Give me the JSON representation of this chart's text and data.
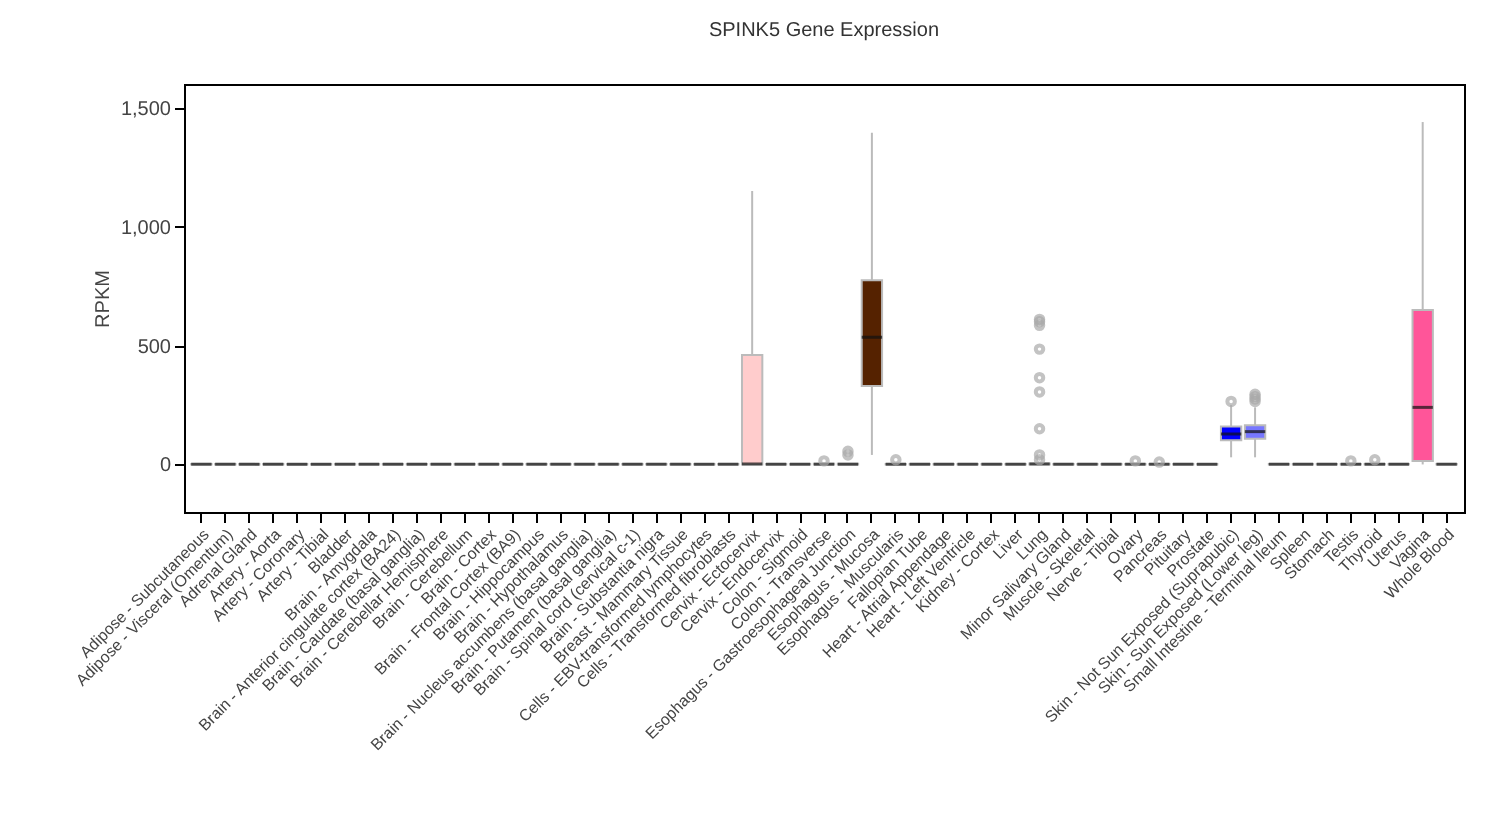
{
  "chart_data": {
    "type": "box",
    "title": "SPINK5 Gene Expression",
    "ylabel": "RPKM",
    "categories": [
      "Adipose - Subcutaneous",
      "Adipose - Visceral (Omentum)",
      "Adrenal Gland",
      "Artery - Aorta",
      "Artery - Coronary",
      "Artery - Tibial",
      "Bladder",
      "Brain - Amygdala",
      "Brain - Anterior cingulate cortex (BA24)",
      "Brain - Caudate (basal ganglia)",
      "Brain - Cerebellar Hemisphere",
      "Brain - Cerebellum",
      "Brain - Cortex",
      "Brain - Frontal Cortex (BA9)",
      "Brain - Hippocampus",
      "Brain - Hypothalamus",
      "Brain - Nucleus accumbens (basal ganglia)",
      "Brain - Putamen (basal ganglia)",
      "Brain - Spinal cord (cervical c-1)",
      "Brain - Substantia nigra",
      "Breast - Mammary Tissue",
      "Cells - EBV-transformed lymphocytes",
      "Cells - Transformed fibroblasts",
      "Cervix - Ectocervix",
      "Cervix - Endocervix",
      "Colon - Sigmoid",
      "Colon - Transverse",
      "Esophagus - Gastroesophageal Junction",
      "Esophagus - Mucosa",
      "Esophagus - Muscularis",
      "Fallopian Tube",
      "Heart - Atrial Appendage",
      "Heart - Left Ventricle",
      "Kidney - Cortex",
      "Liver",
      "Lung",
      "Minor Salivary Gland",
      "Muscle - Skeletal",
      "Nerve - Tibial",
      "Ovary",
      "Pancreas",
      "Pituitary",
      "Prostate",
      "Skin - Not Sun Exposed (Suprapubic)",
      "Skin - Sun Exposed (Lower leg)",
      "Small Intestine - Terminal Ileum",
      "Spleen",
      "Stomach",
      "Testis",
      "Thyroid",
      "Uterus",
      "Vagina",
      "Whole Blood"
    ],
    "colors": [
      "#555555",
      "#555555",
      "#555555",
      "#555555",
      "#555555",
      "#555555",
      "#555555",
      "#555555",
      "#555555",
      "#555555",
      "#555555",
      "#555555",
      "#555555",
      "#555555",
      "#555555",
      "#555555",
      "#555555",
      "#555555",
      "#555555",
      "#555555",
      "#555555",
      "#555555",
      "#555555",
      "#ffcccc",
      "#555555",
      "#555555",
      "#555555",
      "#555555",
      "#552200",
      "#555555",
      "#555555",
      "#555555",
      "#555555",
      "#555555",
      "#555555",
      "#555555",
      "#555555",
      "#555555",
      "#555555",
      "#555555",
      "#555555",
      "#555555",
      "#555555",
      "#0000ff",
      "#7777ff",
      "#555555",
      "#555555",
      "#555555",
      "#555555",
      "#555555",
      "#555555",
      "#ff5599",
      "#555555"
    ],
    "boxes": [
      {
        "low": 0,
        "q1": 0,
        "median": 1,
        "q3": 2,
        "high": 4
      },
      {
        "low": 0,
        "q1": 0,
        "median": 1,
        "q3": 2,
        "high": 4
      },
      {
        "low": 0,
        "q1": 0,
        "median": 1,
        "q3": 2,
        "high": 4
      },
      {
        "low": 0,
        "q1": 0,
        "median": 1,
        "q3": 2,
        "high": 4
      },
      {
        "low": 0,
        "q1": 0,
        "median": 1,
        "q3": 2,
        "high": 4
      },
      {
        "low": 0,
        "q1": 0,
        "median": 1,
        "q3": 2,
        "high": 4
      },
      {
        "low": 0,
        "q1": 0,
        "median": 1,
        "q3": 2,
        "high": 4
      },
      {
        "low": 0,
        "q1": 0,
        "median": 1,
        "q3": 2,
        "high": 4
      },
      {
        "low": 0,
        "q1": 0,
        "median": 1,
        "q3": 2,
        "high": 4
      },
      {
        "low": 0,
        "q1": 0,
        "median": 1,
        "q3": 2,
        "high": 4
      },
      {
        "low": 0,
        "q1": 0,
        "median": 1,
        "q3": 2,
        "high": 4
      },
      {
        "low": 0,
        "q1": 0,
        "median": 1,
        "q3": 2,
        "high": 4
      },
      {
        "low": 0,
        "q1": 0,
        "median": 1,
        "q3": 2,
        "high": 4
      },
      {
        "low": 0,
        "q1": 0,
        "median": 1,
        "q3": 2,
        "high": 4
      },
      {
        "low": 0,
        "q1": 0,
        "median": 1,
        "q3": 2,
        "high": 4
      },
      {
        "low": 0,
        "q1": 0,
        "median": 1,
        "q3": 2,
        "high": 4
      },
      {
        "low": 0,
        "q1": 0,
        "median": 1,
        "q3": 2,
        "high": 4
      },
      {
        "low": 0,
        "q1": 0,
        "median": 1,
        "q3": 2,
        "high": 4
      },
      {
        "low": 0,
        "q1": 0,
        "median": 1,
        "q3": 2,
        "high": 4
      },
      {
        "low": 0,
        "q1": 0,
        "median": 1,
        "q3": 2,
        "high": 4
      },
      {
        "low": 0,
        "q1": 0,
        "median": 1,
        "q3": 2,
        "high": 4
      },
      {
        "low": 0,
        "q1": 0,
        "median": 1,
        "q3": 2,
        "high": 4
      },
      {
        "low": 0,
        "q1": 0,
        "median": 1,
        "q3": 2,
        "high": 4
      },
      {
        "low": 0,
        "q1": 0,
        "median": 2,
        "q3": 460,
        "high": 1150
      },
      {
        "low": 0,
        "q1": 0,
        "median": 1,
        "q3": 2,
        "high": 4
      },
      {
        "low": 0,
        "q1": 0,
        "median": 1,
        "q3": 2,
        "high": 4
      },
      {
        "low": 0,
        "q1": 0,
        "median": 1,
        "q3": 3,
        "high": 6,
        "outliers": [
          15
        ]
      },
      {
        "low": 0,
        "q1": 0,
        "median": 1,
        "q3": 3,
        "high": 6,
        "outliers": [
          40,
          55
        ]
      },
      {
        "low": 40,
        "q1": 330,
        "median": 535,
        "q3": 775,
        "high": 1395
      },
      {
        "low": 0,
        "q1": 0,
        "median": 1,
        "q3": 2,
        "high": 4,
        "outliers": [
          20
        ]
      },
      {
        "low": 0,
        "q1": 0,
        "median": 1,
        "q3": 2,
        "high": 4
      },
      {
        "low": 0,
        "q1": 0,
        "median": 1,
        "q3": 2,
        "high": 4
      },
      {
        "low": 0,
        "q1": 0,
        "median": 1,
        "q3": 2,
        "high": 4
      },
      {
        "low": 0,
        "q1": 0,
        "median": 1,
        "q3": 2,
        "high": 4
      },
      {
        "low": 0,
        "q1": 0,
        "median": 1,
        "q3": 2,
        "high": 4
      },
      {
        "low": 0,
        "q1": 0,
        "median": 2,
        "q3": 4,
        "high": 8,
        "outliers": [
          20,
          40,
          150,
          305,
          365,
          485,
          585,
          600,
          610
        ]
      },
      {
        "low": 0,
        "q1": 0,
        "median": 1,
        "q3": 2,
        "high": 4
      },
      {
        "low": 0,
        "q1": 0,
        "median": 1,
        "q3": 2,
        "high": 4
      },
      {
        "low": 0,
        "q1": 0,
        "median": 1,
        "q3": 2,
        "high": 4
      },
      {
        "low": 0,
        "q1": 0,
        "median": 1,
        "q3": 2,
        "high": 4,
        "outliers": [
          15
        ]
      },
      {
        "low": 0,
        "q1": 0,
        "median": 1,
        "q3": 2,
        "high": 4,
        "outliers": [
          10
        ]
      },
      {
        "low": 0,
        "q1": 0,
        "median": 1,
        "q3": 2,
        "high": 4
      },
      {
        "low": 0,
        "q1": 0,
        "median": 1,
        "q3": 2,
        "high": 4
      },
      {
        "low": 30,
        "q1": 102,
        "median": 128,
        "q3": 160,
        "high": 250,
        "outliers": [
          265
        ]
      },
      {
        "low": 30,
        "q1": 108,
        "median": 138,
        "q3": 165,
        "high": 240,
        "outliers": [
          265,
          275,
          285,
          295
        ]
      },
      {
        "low": 0,
        "q1": 0,
        "median": 1,
        "q3": 2,
        "high": 4
      },
      {
        "low": 0,
        "q1": 0,
        "median": 1,
        "q3": 2,
        "high": 4
      },
      {
        "low": 0,
        "q1": 0,
        "median": 1,
        "q3": 2,
        "high": 4
      },
      {
        "low": 0,
        "q1": 0,
        "median": 1,
        "q3": 2,
        "high": 4,
        "outliers": [
          15
        ]
      },
      {
        "low": 0,
        "q1": 0,
        "median": 1,
        "q3": 2,
        "high": 4,
        "outliers": [
          20
        ]
      },
      {
        "low": 0,
        "q1": 0,
        "median": 1,
        "q3": 2,
        "high": 4
      },
      {
        "low": 0,
        "q1": 15,
        "median": 240,
        "q3": 650,
        "high": 1440
      },
      {
        "low": 0,
        "q1": 0,
        "median": 1,
        "q3": 2,
        "high": 4
      }
    ],
    "ylim": [
      -200,
      1600
    ],
    "yticks": [
      {
        "value": 0,
        "label": "0"
      },
      {
        "value": 500,
        "label": "500"
      },
      {
        "value": 1000,
        "label": "1,000"
      },
      {
        "value": 1500,
        "label": "1,500"
      }
    ],
    "grid": false
  }
}
